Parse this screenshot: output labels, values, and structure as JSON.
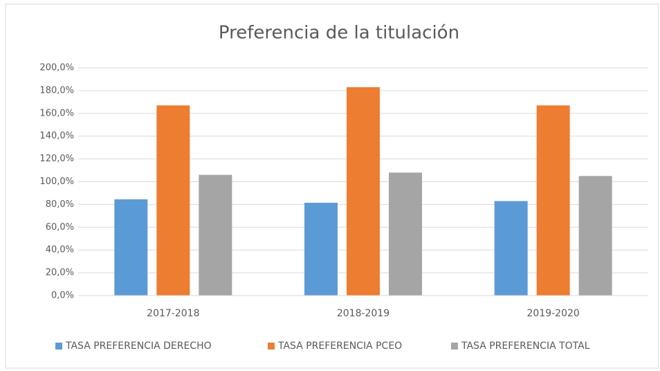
{
  "chart_data": {
    "type": "bar",
    "title": "Preferencia de la titulación",
    "categories": [
      "2017-2018",
      "2018-2019",
      "2019-2020"
    ],
    "series": [
      {
        "name": "TASA PREFERENCIA DERECHO",
        "color": "#5b9bd5",
        "values": [
          84.5,
          81.5,
          83
        ]
      },
      {
        "name": "TASA PREFERENCIA PCEO",
        "color": "#ed7d31",
        "values": [
          167,
          183,
          167
        ]
      },
      {
        "name": "TASA PREFERENCIA TOTAL",
        "color": "#a5a5a5",
        "values": [
          106,
          108,
          105
        ]
      }
    ],
    "ylim": [
      0,
      200
    ],
    "yticks": [
      {
        "value": 0,
        "label": "0,0%"
      },
      {
        "value": 20,
        "label": "20,0%"
      },
      {
        "value": 40,
        "label": "40,0%"
      },
      {
        "value": 60,
        "label": "60,0%"
      },
      {
        "value": 80,
        "label": "80,0%"
      },
      {
        "value": 100,
        "label": "100,0%"
      },
      {
        "value": 120,
        "label": "120,0%"
      },
      {
        "value": 140,
        "label": "140,0%"
      },
      {
        "value": 160,
        "label": "160,0%"
      },
      {
        "value": 180,
        "label": "180,0%"
      },
      {
        "value": 200,
        "label": "200,0%"
      }
    ],
    "grid": true,
    "legend": "bottom"
  }
}
